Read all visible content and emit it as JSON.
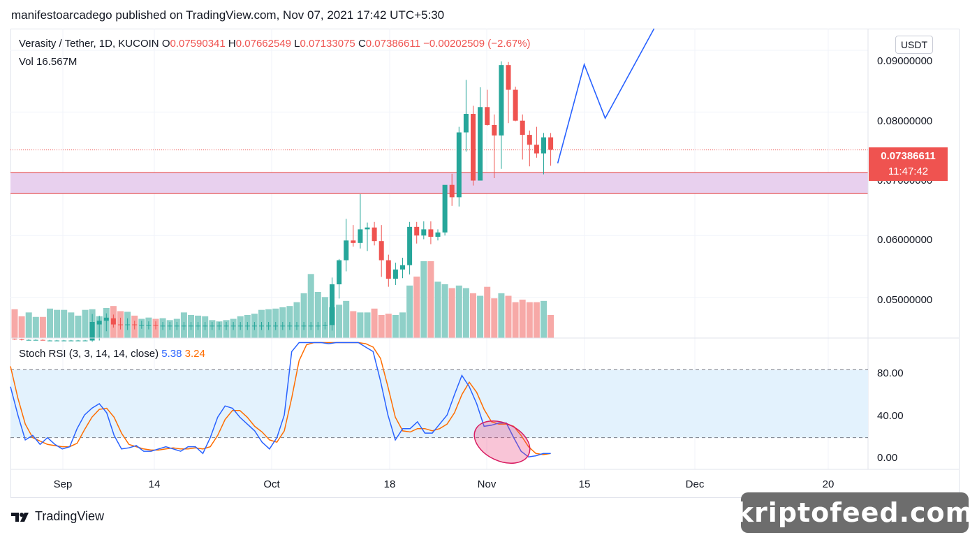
{
  "header": {
    "published": "manifestoarcadego published on TradingView.com, Nov 07, 2021 17:42 UTC+5:30"
  },
  "legend": {
    "pair": "Verasity / Tether, 1D, KUCOIN",
    "o_label": "O",
    "o_value": "0.07590341",
    "h_label": "H",
    "h_value": "0.07662549",
    "l_label": "L",
    "l_value": "0.07133075",
    "c_label": "C",
    "c_value": "0.07386611",
    "change": "−0.00202509 (−2.67%)",
    "vol_label": "Vol",
    "vol_value": "16.567M"
  },
  "stoch": {
    "label": "Stoch RSI (3, 3, 14, 14, close)",
    "k_value": "5.38",
    "d_value": "3.24"
  },
  "price_scale": {
    "unit": "USDT",
    "ticks": [
      "0.09000000",
      "0.08000000",
      "0.07000000",
      "0.06000000",
      "0.05000000"
    ]
  },
  "last_price": {
    "value": "0.07386611",
    "countdown": "11:47:42"
  },
  "stoch_scale": {
    "ticks": [
      "80.00",
      "40.00",
      "0.00"
    ]
  },
  "time_axis": [
    "Sep",
    "14",
    "Oct",
    "18",
    "Nov",
    "15",
    "Dec",
    "20"
  ],
  "footer": {
    "brand": "TradingView",
    "watermark": "kriptofeed.com"
  },
  "colors": {
    "up": "#26a69a",
    "down": "#ef5350",
    "vol_up": "#8fd0c8",
    "vol_down": "#f7a9a7",
    "k_line": "#2962ff",
    "d_line": "#ff6d00",
    "zone": "#e8d0ee",
    "stoch_band": "#e3f2fd",
    "projection": "#2962ff"
  },
  "chart_data": [
    {
      "type": "candlestick",
      "y_range": [
        0.0434,
        0.0935
      ],
      "support_zone": [
        0.0668,
        0.0702
      ],
      "last_price": 0.07386611,
      "projection": [
        [
          0.0717,
          0.0877,
          0.079,
          0.0985
        ]
      ],
      "candles": [
        [
          0.0433,
          0.0433,
          0.0431,
          0.0432
        ],
        [
          0.0432,
          0.0433,
          0.043,
          0.0431
        ],
        [
          0.0431,
          0.0432,
          0.043,
          0.0431
        ],
        [
          0.0431,
          0.0432,
          0.043,
          0.0431
        ],
        [
          0.0431,
          0.0432,
          0.043,
          0.043
        ],
        [
          0.043,
          0.0431,
          0.0429,
          0.043
        ],
        [
          0.043,
          0.0431,
          0.0429,
          0.043
        ],
        [
          0.043,
          0.0431,
          0.0429,
          0.043
        ],
        [
          0.043,
          0.0431,
          0.0429,
          0.043
        ],
        [
          0.043,
          0.0431,
          0.0429,
          0.043
        ],
        [
          0.043,
          0.0431,
          0.0429,
          0.043
        ],
        [
          0.043,
          0.0473,
          0.0428,
          0.046
        ],
        [
          0.0456,
          0.047,
          0.043,
          0.0462
        ],
        [
          0.0462,
          0.0474,
          0.0445,
          0.0467
        ],
        [
          0.0466,
          0.0472,
          0.0451,
          0.0456
        ],
        [
          0.0456,
          0.0467,
          0.0448,
          0.0455
        ],
        [
          0.0455,
          0.0466,
          0.0447,
          0.0456
        ],
        [
          0.0456,
          0.0462,
          0.0448,
          0.0455
        ],
        [
          0.0455,
          0.0462,
          0.0449,
          0.0455
        ],
        [
          0.0455,
          0.0461,
          0.0448,
          0.0455
        ],
        [
          0.0455,
          0.0461,
          0.0448,
          0.0454
        ],
        [
          0.0454,
          0.046,
          0.0447,
          0.0454
        ],
        [
          0.0454,
          0.046,
          0.0447,
          0.0454
        ],
        [
          0.0454,
          0.046,
          0.0447,
          0.0454
        ],
        [
          0.0454,
          0.046,
          0.0447,
          0.0454
        ],
        [
          0.0454,
          0.046,
          0.0447,
          0.0454
        ],
        [
          0.0454,
          0.046,
          0.0447,
          0.0454
        ],
        [
          0.0454,
          0.046,
          0.0447,
          0.0454
        ],
        [
          0.0454,
          0.046,
          0.0447,
          0.0454
        ],
        [
          0.0454,
          0.046,
          0.0447,
          0.0454
        ],
        [
          0.0454,
          0.046,
          0.0447,
          0.0454
        ],
        [
          0.0454,
          0.046,
          0.0447,
          0.0454
        ],
        [
          0.0454,
          0.046,
          0.0447,
          0.0454
        ],
        [
          0.0454,
          0.046,
          0.0447,
          0.0454
        ],
        [
          0.0454,
          0.046,
          0.0447,
          0.0454
        ],
        [
          0.0454,
          0.046,
          0.0447,
          0.0454
        ],
        [
          0.0454,
          0.046,
          0.0447,
          0.0454
        ],
        [
          0.0454,
          0.046,
          0.0447,
          0.0454
        ],
        [
          0.0454,
          0.046,
          0.0447,
          0.0454
        ],
        [
          0.0454,
          0.046,
          0.0447,
          0.0454
        ],
        [
          0.0454,
          0.046,
          0.0447,
          0.0454
        ],
        [
          0.0454,
          0.046,
          0.0447,
          0.0454
        ],
        [
          0.0454,
          0.046,
          0.0447,
          0.0454
        ],
        [
          0.0454,
          0.046,
          0.0447,
          0.0454
        ],
        [
          0.0454,
          0.046,
          0.0448,
          0.0455
        ],
        [
          0.0455,
          0.0532,
          0.0446,
          0.0521
        ],
        [
          0.0521,
          0.0562,
          0.0498,
          0.056
        ],
        [
          0.056,
          0.0627,
          0.0542,
          0.0592
        ],
        [
          0.0592,
          0.0617,
          0.0582,
          0.0588
        ],
        [
          0.0588,
          0.0667,
          0.0579,
          0.061
        ],
        [
          0.061,
          0.0621,
          0.0575,
          0.0613
        ],
        [
          0.0613,
          0.0622,
          0.0584,
          0.0591
        ],
        [
          0.0591,
          0.0617,
          0.0533,
          0.056
        ],
        [
          0.056,
          0.0569,
          0.0517,
          0.053
        ],
        [
          0.053,
          0.0556,
          0.052,
          0.0545
        ],
        [
          0.0545,
          0.0564,
          0.0531,
          0.0552
        ],
        [
          0.0552,
          0.0622,
          0.0537,
          0.0614
        ],
        [
          0.0614,
          0.0622,
          0.0587,
          0.06
        ],
        [
          0.06,
          0.0623,
          0.0594,
          0.061
        ],
        [
          0.061,
          0.0623,
          0.0586,
          0.0598
        ],
        [
          0.0598,
          0.061,
          0.0592,
          0.0605
        ],
        [
          0.0605,
          0.0681,
          0.06,
          0.0682
        ],
        [
          0.0682,
          0.07,
          0.0648,
          0.0662
        ],
        [
          0.0662,
          0.0776,
          0.0647,
          0.0767
        ],
        [
          0.0767,
          0.0852,
          0.0736,
          0.0797
        ],
        [
          0.0797,
          0.081,
          0.0681,
          0.0689
        ],
        [
          0.0689,
          0.084,
          0.0689,
          0.0808
        ],
        [
          0.0808,
          0.0836,
          0.0778,
          0.0779
        ],
        [
          0.0779,
          0.0796,
          0.0693,
          0.0762
        ],
        [
          0.0762,
          0.0882,
          0.0708,
          0.0876
        ],
        [
          0.0876,
          0.0881,
          0.0782,
          0.0836
        ],
        [
          0.0836,
          0.0841,
          0.0785,
          0.0786
        ],
        [
          0.0786,
          0.0796,
          0.0723,
          0.0763
        ],
        [
          0.0763,
          0.077,
          0.0712,
          0.0747
        ],
        [
          0.0747,
          0.0776,
          0.0726,
          0.0733
        ],
        [
          0.0733,
          0.0766,
          0.0699,
          0.0759
        ],
        [
          0.0759,
          0.0766,
          0.0713,
          0.0739
        ]
      ],
      "volumes": [
        0.45,
        0.34,
        0.4,
        0.33,
        0.33,
        0.46,
        0.44,
        0.44,
        0.4,
        0.35,
        0.44,
        0.45,
        0.34,
        0.47,
        0.5,
        0.42,
        0.41,
        0.35,
        0.3,
        0.32,
        0.3,
        0.31,
        0.28,
        0.3,
        0.4,
        0.36,
        0.35,
        0.34,
        0.28,
        0.26,
        0.28,
        0.3,
        0.34,
        0.36,
        0.38,
        0.44,
        0.45,
        0.46,
        0.48,
        0.5,
        0.56,
        0.7,
        1.0,
        0.72,
        0.64,
        0.48,
        0.52,
        0.58,
        0.42,
        0.4,
        0.4,
        0.46,
        0.36,
        0.38,
        0.36,
        0.4,
        0.82,
        0.96,
        1.2,
        1.2,
        0.88,
        0.84,
        0.78,
        0.82,
        0.78,
        0.7,
        0.66,
        0.8,
        0.62,
        0.7,
        0.66,
        0.56,
        0.6,
        0.56,
        0.56,
        0.58,
        0.36
      ]
    },
    {
      "type": "line",
      "name_k": "K",
      "name_d": "D",
      "y_range": [
        -8,
        108
      ],
      "band": [
        20,
        80
      ],
      "k": [
        65,
        40,
        18,
        22,
        14,
        20,
        14,
        10,
        12,
        28,
        40,
        46,
        50,
        42,
        22,
        10,
        11,
        13,
        8,
        8,
        10,
        12,
        10,
        8,
        12,
        12,
        6,
        20,
        38,
        48,
        46,
        38,
        32,
        26,
        16,
        10,
        20,
        40,
        96,
        104,
        104,
        104,
        104,
        103,
        104,
        104,
        104,
        104,
        100,
        96,
        70,
        40,
        18,
        28,
        28,
        34,
        24,
        24,
        32,
        40,
        58,
        75,
        65,
        50,
        30,
        31,
        33,
        33,
        20,
        8,
        3,
        4,
        6,
        6
      ],
      "d": [
        83,
        55,
        32,
        20,
        17,
        14,
        13,
        12,
        12,
        15,
        27,
        38,
        45,
        46,
        38,
        24,
        14,
        12,
        10,
        9,
        9,
        10,
        11,
        10,
        10,
        11,
        10,
        12,
        22,
        36,
        44,
        44,
        38,
        30,
        25,
        18,
        16,
        26,
        55,
        88,
        102,
        104,
        104,
        104,
        104,
        104,
        104,
        104,
        103,
        100,
        90,
        65,
        38,
        26,
        25,
        28,
        28,
        26,
        28,
        32,
        42,
        58,
        69,
        60,
        45,
        34,
        32,
        32,
        30,
        22,
        12,
        6,
        5,
        6
      ]
    }
  ]
}
